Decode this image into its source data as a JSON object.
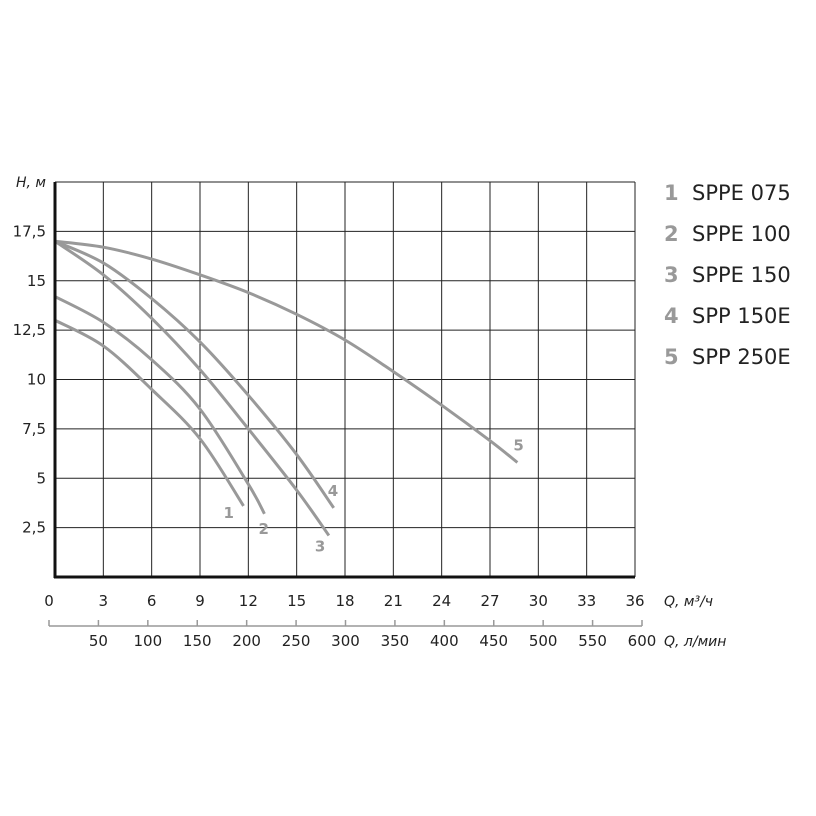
{
  "chart_data": {
    "type": "line",
    "title": "",
    "ylabel": "H, м",
    "xlabel": "Q, м³/ч",
    "xlabel2": "Q, л/мин",
    "xlim": [
      0,
      36
    ],
    "ylim": [
      0,
      20
    ],
    "x_ticks": [
      "0",
      "3",
      "6",
      "9",
      "12",
      "15",
      "18",
      "21",
      "24",
      "27",
      "30",
      "33",
      "36"
    ],
    "x2_ticks": [
      "50",
      "100",
      "150",
      "200",
      "250",
      "300",
      "350",
      "400",
      "450",
      "500",
      "550",
      "600"
    ],
    "y_ticks": [
      "2,5",
      "5",
      "7,5",
      "10",
      "12,5",
      "15",
      "17,5"
    ],
    "y_tick_values": [
      2.5,
      5,
      7.5,
      10,
      12.5,
      15,
      17.5
    ],
    "grid": true,
    "legend_placement": "right",
    "curve_color": "#999999",
    "grid_color": "#222222",
    "series": [
      {
        "name": "SPPE 075",
        "label": "1",
        "x": [
          0,
          3,
          6,
          9,
          11.7
        ],
        "y": [
          13,
          11.7,
          9.5,
          7,
          3.6
        ]
      },
      {
        "name": "SPPE 100",
        "label": "2",
        "x": [
          0,
          3,
          6,
          9,
          12,
          13
        ],
        "y": [
          14.2,
          12.9,
          11,
          8.5,
          4.7,
          3.2
        ]
      },
      {
        "name": "SPPE 150",
        "label": "3",
        "x": [
          0,
          3,
          6,
          9,
          12,
          15,
          17
        ],
        "y": [
          17,
          15.3,
          13.1,
          10.5,
          7.5,
          4.4,
          2.1
        ]
      },
      {
        "name": "SPP 150E",
        "label": "4",
        "x": [
          0,
          3,
          6,
          9,
          12,
          15,
          17.3
        ],
        "y": [
          17,
          15.9,
          14.1,
          11.9,
          9.2,
          6.2,
          3.5
        ]
      },
      {
        "name": "SPP 250E",
        "label": "5",
        "x": [
          0,
          3,
          6,
          9,
          12,
          15,
          18,
          21,
          24,
          27,
          28.7
        ],
        "y": [
          17,
          16.7,
          16.1,
          15.3,
          14.4,
          13.3,
          12,
          10.4,
          8.7,
          6.9,
          5.8
        ]
      }
    ]
  }
}
